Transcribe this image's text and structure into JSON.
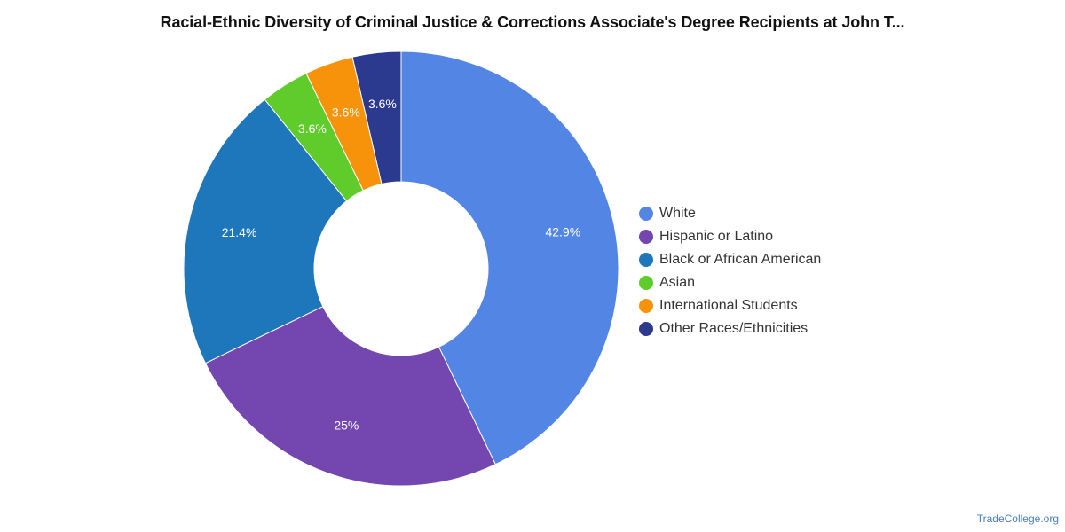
{
  "title": "Racial-Ethnic Diversity of Criminal Justice & Corrections Associate's Degree Recipients at John T...",
  "watermark": "TradeCollege.org",
  "chart_data": {
    "type": "pie",
    "donut": true,
    "title": "Racial-Ethnic Diversity of Criminal Justice & Corrections Associate's Degree Recipients at John T...",
    "legend_position": "right",
    "categories": [
      "White",
      "Hispanic or Latino",
      "Black or African American",
      "Asian",
      "International Students",
      "Other Races/Ethnicities"
    ],
    "values": [
      42.9,
      25,
      21.4,
      3.6,
      3.6,
      3.6
    ],
    "labels": [
      "42.9%",
      "25%",
      "21.4%",
      "3.6%",
      "3.6%",
      "3.6%"
    ],
    "colors": [
      "#5386e4",
      "#7446b0",
      "#1f77bb",
      "#60cc2c",
      "#f7920b",
      "#2b3a8f"
    ]
  }
}
